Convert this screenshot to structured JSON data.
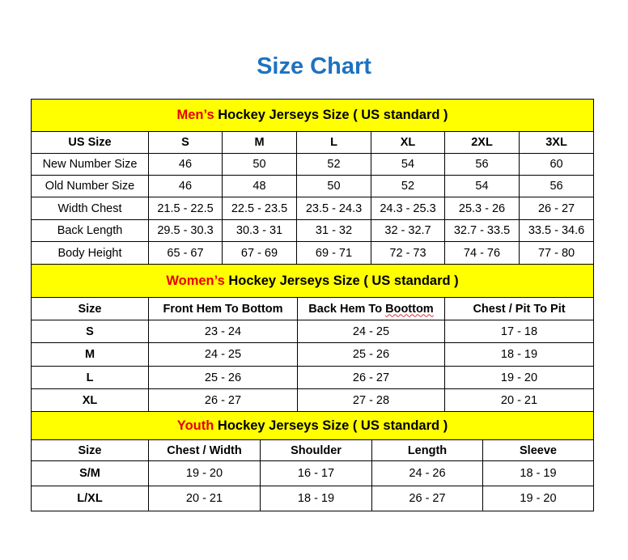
{
  "title": "Size Chart",
  "colors": {
    "title": "#1f72c0",
    "section_bg": "#ffff00",
    "accent_red": "#e60000"
  },
  "men": {
    "title_highlight": "Men’s",
    "title_rest": " Hockey Jerseys Size ( US standard )",
    "headers": [
      "US Size",
      "S",
      "M",
      "L",
      "XL",
      "2XL",
      "3XL"
    ],
    "rows": [
      [
        "New Number Size",
        "46",
        "50",
        "52",
        "54",
        "56",
        "60"
      ],
      [
        "Old Number Size",
        "46",
        "48",
        "50",
        "52",
        "54",
        "56"
      ],
      [
        "Width Chest",
        "21.5 - 22.5",
        "22.5 - 23.5",
        "23.5 - 24.3",
        "24.3 - 25.3",
        "25.3 - 26",
        "26 - 27"
      ],
      [
        "Back Length",
        "29.5 - 30.3",
        "30.3 - 31",
        "31 - 32",
        "32 - 32.7",
        "32.7 - 33.5",
        "33.5 - 34.6"
      ],
      [
        "Body Height",
        "65 - 67",
        "67 - 69",
        "69 - 71",
        "72 - 73",
        "74 - 76",
        "77 - 80"
      ]
    ]
  },
  "women": {
    "title_highlight": "Women’s",
    "title_rest": " Hockey Jerseys Size ( US standard )",
    "headers": [
      "Size",
      "Front Hem To Bottom",
      "Back Hem To Boottom",
      "Chest / Pit To Pit"
    ],
    "rows": [
      [
        "S",
        "23 - 24",
        "24 - 25",
        "17 - 18"
      ],
      [
        "M",
        "24 - 25",
        "25 - 26",
        "18 - 19"
      ],
      [
        "L",
        "25 - 26",
        "26 - 27",
        "19 - 20"
      ],
      [
        "XL",
        "26 - 27",
        "27 - 28",
        "20 - 21"
      ]
    ]
  },
  "youth": {
    "title_highlight": "Youth",
    "title_rest": " Hockey Jerseys Size ( US standard )",
    "headers": [
      "Size",
      "Chest / Width",
      "Shoulder",
      "Length",
      "Sleeve"
    ],
    "rows": [
      [
        "S/M",
        "19 - 20",
        "16 - 17",
        "24 - 26",
        "18 - 19"
      ],
      [
        "L/XL",
        "20 - 21",
        "18 - 19",
        "26 - 27",
        "19 - 20"
      ]
    ]
  }
}
